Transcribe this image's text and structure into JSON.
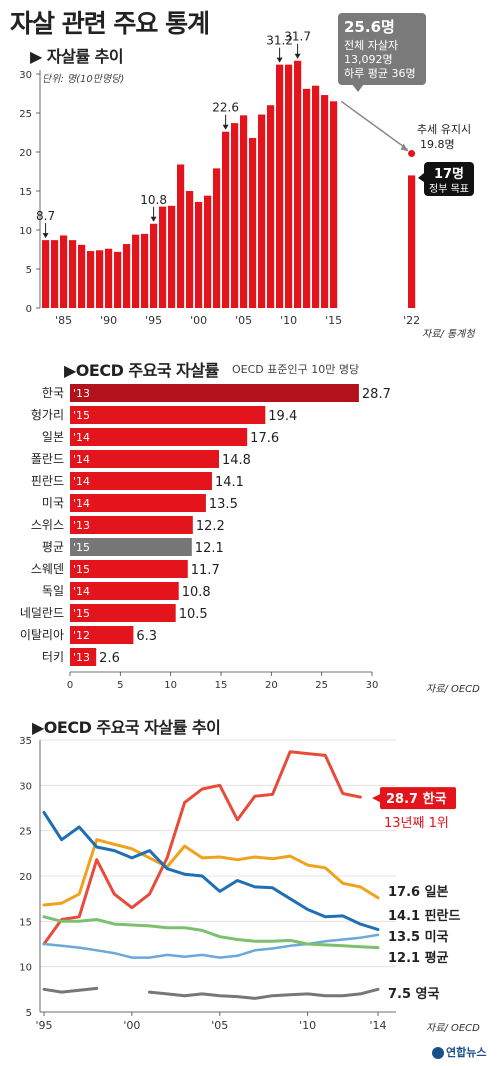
{
  "page": {
    "title": "자살 관련 주요 통계",
    "logo": "연합뉴스",
    "colors": {
      "red": "#e3141b",
      "dark_red": "#b3121a",
      "gray": "#777777"
    }
  },
  "chart_data": [
    {
      "type": "bar",
      "title": "▶ 자살률 추이",
      "unit_note": "단위: 명(10만명당)",
      "source": "자료/ 통계청",
      "ylim": [
        0,
        30
      ],
      "yticks": [
        0,
        5,
        10,
        15,
        20,
        25,
        30
      ],
      "x_tick_labels": [
        "'85",
        "'90",
        "'95",
        "'00",
        "'05",
        "'10",
        "'15",
        "'22"
      ],
      "categories": [
        1983,
        1984,
        1985,
        1986,
        1987,
        1988,
        1989,
        1990,
        1991,
        1992,
        1993,
        1994,
        1995,
        1996,
        1997,
        1998,
        1999,
        2000,
        2001,
        2002,
        2003,
        2004,
        2005,
        2006,
        2007,
        2008,
        2009,
        2010,
        2011,
        2012,
        2013,
        2014,
        2015,
        2022
      ],
      "values": [
        8.7,
        8.7,
        9.3,
        8.7,
        8.1,
        7.3,
        7.4,
        7.6,
        7.2,
        8.2,
        9.4,
        9.5,
        10.8,
        13.0,
        13.1,
        18.4,
        15.0,
        13.6,
        14.4,
        17.9,
        22.6,
        23.7,
        24.7,
        21.8,
        24.8,
        26.0,
        31.2,
        31.2,
        31.7,
        28.1,
        28.5,
        27.3,
        26.5,
        17
      ],
      "annotations": [
        {
          "year": 1983,
          "label": "8.7"
        },
        {
          "year": 1995,
          "label": "10.8"
        },
        {
          "year": 2003,
          "label": "22.6"
        },
        {
          "year": 2009,
          "label": "31.2"
        },
        {
          "year": 2011,
          "label": "31.7"
        }
      ],
      "latest_box": {
        "value": "25.6명",
        "line1": "전체 자살자",
        "line2": "13,092명",
        "line3": "하루 평균 36명"
      },
      "trend": {
        "label": "추세 유지시",
        "value_label": "19.8명",
        "value": 19.8
      },
      "target": {
        "value": "17명",
        "label": "정부 목표"
      }
    },
    {
      "type": "bar",
      "orientation": "horizontal",
      "title": "▶OECD 주요국 자살률",
      "subtitle": "OECD 표준인구 10만 명당",
      "source": "자료/ OECD",
      "xlim": [
        0,
        30
      ],
      "xticks": [
        0,
        5,
        10,
        15,
        20,
        25,
        30
      ],
      "rows": [
        {
          "country": "한국",
          "year": "'13",
          "value": 28.7,
          "label": "28.7",
          "style": "highlight"
        },
        {
          "country": "헝가리",
          "year": "'15",
          "value": 19.4,
          "label": "19.4",
          "style": "normal"
        },
        {
          "country": "일본",
          "year": "'14",
          "value": 17.6,
          "label": "17.6",
          "style": "normal"
        },
        {
          "country": "폴란드",
          "year": "'14",
          "value": 14.8,
          "label": "14.8",
          "style": "normal"
        },
        {
          "country": "핀란드",
          "year": "'14",
          "value": 14.1,
          "label": "14.1",
          "style": "normal"
        },
        {
          "country": "미국",
          "year": "'14",
          "value": 13.5,
          "label": "13.5",
          "style": "normal"
        },
        {
          "country": "스위스",
          "year": "'13",
          "value": 12.2,
          "label": "12.2",
          "style": "normal"
        },
        {
          "country": "평균",
          "year": "'15",
          "value": 12.1,
          "label": "12.1",
          "style": "average"
        },
        {
          "country": "스웨덴",
          "year": "'15",
          "value": 11.7,
          "label": "11.7",
          "style": "normal"
        },
        {
          "country": "독일",
          "year": "'14",
          "value": 10.8,
          "label": "10.8",
          "style": "normal"
        },
        {
          "country": "네덜란드",
          "year": "'15",
          "value": 10.5,
          "label": "10.5",
          "style": "normal"
        },
        {
          "country": "이탈리아",
          "year": "'12",
          "value": 6.3,
          "label": "6.3",
          "style": "normal"
        },
        {
          "country": "터키",
          "year": "'13",
          "value": 2.6,
          "label": "2.6",
          "style": "normal"
        }
      ]
    },
    {
      "type": "line",
      "title": "▶OECD 주요국 자살률 추이",
      "source": "자료/ OECD",
      "ylim": [
        5,
        35
      ],
      "yticks": [
        5,
        10,
        15,
        20,
        25,
        30,
        35
      ],
      "x_tick_labels": [
        "'95",
        "'00",
        "'05",
        "'10",
        "'14"
      ],
      "x": [
        1995,
        1996,
        1997,
        1998,
        1999,
        2000,
        2001,
        2002,
        2003,
        2004,
        2005,
        2006,
        2007,
        2008,
        2009,
        2010,
        2011,
        2012,
        2013,
        2014
      ],
      "series": [
        {
          "name": "한국",
          "end_label": "28.7 한국",
          "note": "13년째 1위",
          "color": "#e84b3a",
          "width": 3,
          "values": [
            12.5,
            15.2,
            15.5,
            21.8,
            18.0,
            16.5,
            18.0,
            22.0,
            28.1,
            29.6,
            30.0,
            26.2,
            28.8,
            29.0,
            33.7,
            33.5,
            33.3,
            29.1,
            28.7,
            null
          ]
        },
        {
          "name": "일본",
          "end_label": "17.6 일본",
          "color": "#f0a21d",
          "width": 3,
          "values": [
            16.8,
            17.0,
            18.0,
            24.0,
            23.5,
            23.0,
            22.0,
            21.0,
            23.3,
            22.0,
            22.1,
            21.8,
            22.1,
            21.9,
            22.2,
            21.2,
            20.9,
            19.2,
            18.8,
            17.6
          ]
        },
        {
          "name": "핀란드",
          "end_label": "14.1 핀란드",
          "color": "#1f6fb5",
          "width": 3,
          "values": [
            27.0,
            24.0,
            25.4,
            23.2,
            22.8,
            22.0,
            22.8,
            20.8,
            20.2,
            20.0,
            18.3,
            19.5,
            18.8,
            18.7,
            17.5,
            16.3,
            15.5,
            15.6,
            14.7,
            14.1
          ]
        },
        {
          "name": "미국",
          "end_label": "13.5 미국",
          "color": "#6aa9d9",
          "width": 2.5,
          "values": [
            12.5,
            12.3,
            12.1,
            11.8,
            11.5,
            11.0,
            11.0,
            11.3,
            11.1,
            11.3,
            11.0,
            11.2,
            11.8,
            12.0,
            12.3,
            12.5,
            12.8,
            13.0,
            13.2,
            13.5
          ]
        },
        {
          "name": "평균",
          "end_label": "12.1 평균",
          "color": "#7cc06f",
          "width": 3,
          "values": [
            15.5,
            15.0,
            15.0,
            15.2,
            14.7,
            14.6,
            14.5,
            14.3,
            14.3,
            14.0,
            13.3,
            13.0,
            12.8,
            12.8,
            12.9,
            12.5,
            12.4,
            12.3,
            12.2,
            12.1
          ]
        },
        {
          "name": "영국",
          "end_label": "7.5 영국",
          "color": "#777777",
          "width": 3,
          "values": [
            7.5,
            7.2,
            7.4,
            7.6,
            null,
            null,
            7.2,
            7.0,
            6.8,
            7.0,
            6.8,
            6.7,
            6.5,
            6.8,
            6.9,
            7.0,
            6.8,
            6.8,
            7.0,
            7.5
          ]
        }
      ]
    }
  ]
}
